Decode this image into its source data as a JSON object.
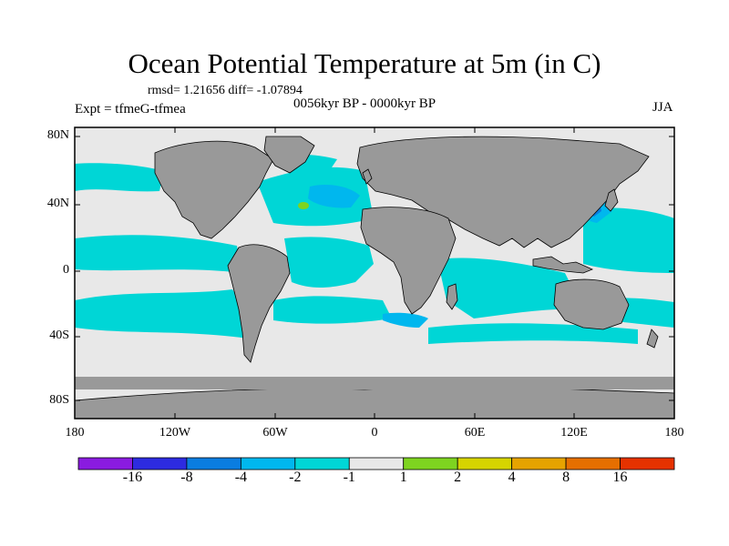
{
  "title": "Ocean Potential Temperature at 5m (in C)",
  "stats": "rmsd= 1.21656 diff= -1.07894",
  "experiment": "Expt = tfmeG-tfmea",
  "period": "0056kyr BP - 0000kyr BP",
  "season": "JJA",
  "lat_ticks": [
    "80N",
    "40N",
    "0",
    "40S",
    "80S"
  ],
  "lon_ticks": [
    "180",
    "120W",
    "60W",
    "0",
    "60E",
    "120E",
    "180"
  ],
  "colors": {
    "land": "#999999",
    "missing": "#999999",
    "neutral": "#e8e8e8",
    "cyan": "#00d6d6",
    "light_blue": "#00b7ee",
    "mid_blue": "#0a7de0",
    "green": "#7ed420"
  },
  "colorbar": {
    "levels": [
      "-16",
      "-8",
      "-4",
      "-2",
      "-1",
      "1",
      "2",
      "4",
      "8",
      "16"
    ],
    "colors": [
      "#8a1be0",
      "#2d2be0",
      "#0a7de0",
      "#00b7ee",
      "#00d6d6",
      "#e8e8e8",
      "#7ed420",
      "#d6d400",
      "#e6a300",
      "#e66f00",
      "#e63200"
    ]
  }
}
